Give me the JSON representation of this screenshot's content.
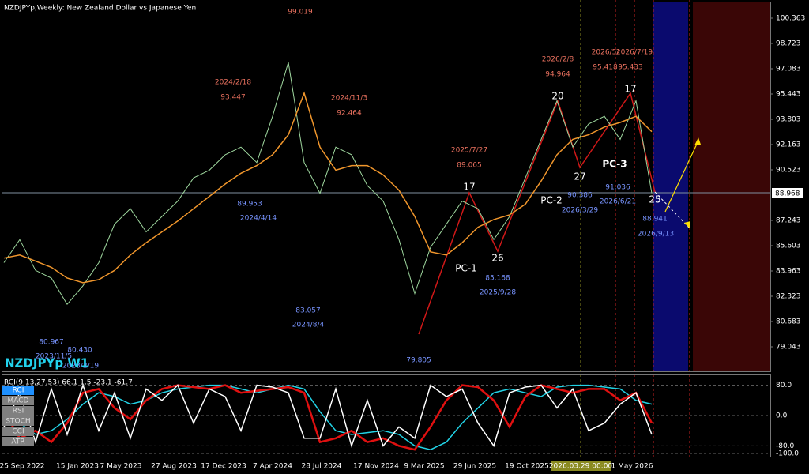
{
  "header": {
    "title": "NZDJPYp,Weekly:  New Zealand Dollar vs Japanese Yen",
    "symbol": "NZDJPYp W1",
    "current_price": "88.968"
  },
  "chart_data": {
    "type": "line",
    "series": [
      {
        "name": "Close",
        "color": "#9fd89f",
        "values": [
          84.5,
          86,
          84,
          83.5,
          81.8,
          83,
          84.5,
          87,
          88,
          86.5,
          87.5,
          88.5,
          90,
          90.5,
          91.5,
          92,
          91,
          94,
          97.5,
          91,
          89,
          92,
          91.5,
          89.5,
          88.5,
          86,
          82.5,
          85.5,
          87,
          88.5,
          88,
          86,
          87.5,
          90,
          92.5,
          95,
          92,
          93.5,
          94,
          92.5,
          95,
          89
        ]
      },
      {
        "name": "MA",
        "color": "#f0962c",
        "values": [
          84.8,
          85,
          84.6,
          84.2,
          83.5,
          83.2,
          83.4,
          84,
          85,
          85.8,
          86.5,
          87.2,
          88,
          88.8,
          89.6,
          90.3,
          90.8,
          91.5,
          92.8,
          95.5,
          92,
          90.5,
          90.8,
          90.8,
          90.2,
          89.2,
          87.5,
          85.2,
          85,
          85.8,
          86.8,
          87.3,
          87.6,
          88.3,
          89.8,
          91.5,
          92.5,
          92.8,
          93.3,
          93.6,
          94,
          93
        ]
      }
    ],
    "ylim": [
      77.454,
      101.388
    ],
    "yticks": [
      100.363,
      98.723,
      97.083,
      95.443,
      93.803,
      92.163,
      90.523,
      87.243,
      85.603,
      83.963,
      82.323,
      80.683,
      79.043
    ],
    "x_labels": [
      "25 Sep 2022",
      "15 Jan 2023",
      "7 May 2023",
      "27 Aug 2023",
      "17 Dec 2023",
      "7 Apr 2024",
      "28 Jul 2024",
      "17 Nov 2024",
      "9 Mar 2025",
      "29 Jun 2025",
      "19 Oct 2025",
      "2026.03.29 00:00",
      "1 May 2026"
    ]
  },
  "indicator": {
    "title": "RCI(9,13,27,53) 66.1 1.5 -23.1 -61.7",
    "buttons": [
      "RCI",
      "MACD",
      "RSI",
      "STOCH",
      "CCI",
      "ATR"
    ],
    "ylim": [
      -108.3,
      108.3
    ],
    "yticks": [
      {
        "value": 80,
        "label": "80.0"
      },
      {
        "value": 0,
        "label": "0.0"
      },
      {
        "value": -80,
        "label": "-80.0"
      },
      {
        "value": -100,
        "label": "-100.0"
      }
    ],
    "series": [
      {
        "name": "RCI 53",
        "color": "#22d3e6",
        "values": [
          20,
          -20,
          -50,
          -40,
          -10,
          30,
          60,
          50,
          30,
          40,
          60,
          70,
          75,
          80,
          80,
          70,
          60,
          70,
          80,
          70,
          10,
          -40,
          -50,
          -45,
          -40,
          -50,
          -80,
          -90,
          -70,
          -20,
          20,
          60,
          70,
          60,
          50,
          75,
          80,
          80,
          75,
          70,
          40,
          30
        ]
      },
      {
        "name": "RCI 27",
        "color": "#e01010",
        "values": [
          10,
          -60,
          -40,
          -70,
          -20,
          60,
          70,
          20,
          -10,
          40,
          70,
          80,
          75,
          70,
          80,
          60,
          65,
          70,
          75,
          60,
          -70,
          -60,
          -40,
          -70,
          -60,
          -80,
          -90,
          -30,
          40,
          80,
          75,
          40,
          -30,
          50,
          80,
          70,
          60,
          70,
          70,
          40,
          60,
          -20
        ]
      },
      {
        "name": "RCI 9",
        "color": "#ffffff",
        "values": [
          -30,
          60,
          -70,
          70,
          -50,
          80,
          -40,
          60,
          -60,
          70,
          40,
          80,
          -20,
          70,
          50,
          -40,
          80,
          75,
          60,
          -60,
          -60,
          70,
          -80,
          40,
          -80,
          -30,
          -60,
          80,
          50,
          70,
          -20,
          -80,
          60,
          75,
          80,
          20,
          70,
          -40,
          -20,
          30,
          60,
          -50
        ]
      }
    ]
  },
  "annotations": [
    {
      "color": "#e8705e",
      "items": [
        "99.019",
        "2024/2/18",
        "93.447",
        "2024/11/3",
        "92.464",
        "2025/7/27",
        "89.065",
        "2026/2/8",
        "94.964",
        "2026/5/",
        "95.418",
        "2026/7/19",
        "95.433"
      ]
    },
    {
      "color": "#7894ff",
      "items": [
        "89.953",
        "2024/4/14",
        "83.057",
        "2024/8/4",
        "80.967",
        "80.430",
        "2023/11/5",
        "2023/2/19",
        "79.805",
        "85.168",
        "2025/9/28",
        "90.386",
        "2026/3/29",
        "91.036",
        "2026/6/21",
        "88.941",
        "2026/9/13"
      ]
    },
    {
      "color": "#ffffff",
      "items": [
        "17",
        "26",
        "PC-1",
        "PC-2",
        "20",
        "27",
        "PC-3",
        "17",
        "25"
      ]
    }
  ]
}
